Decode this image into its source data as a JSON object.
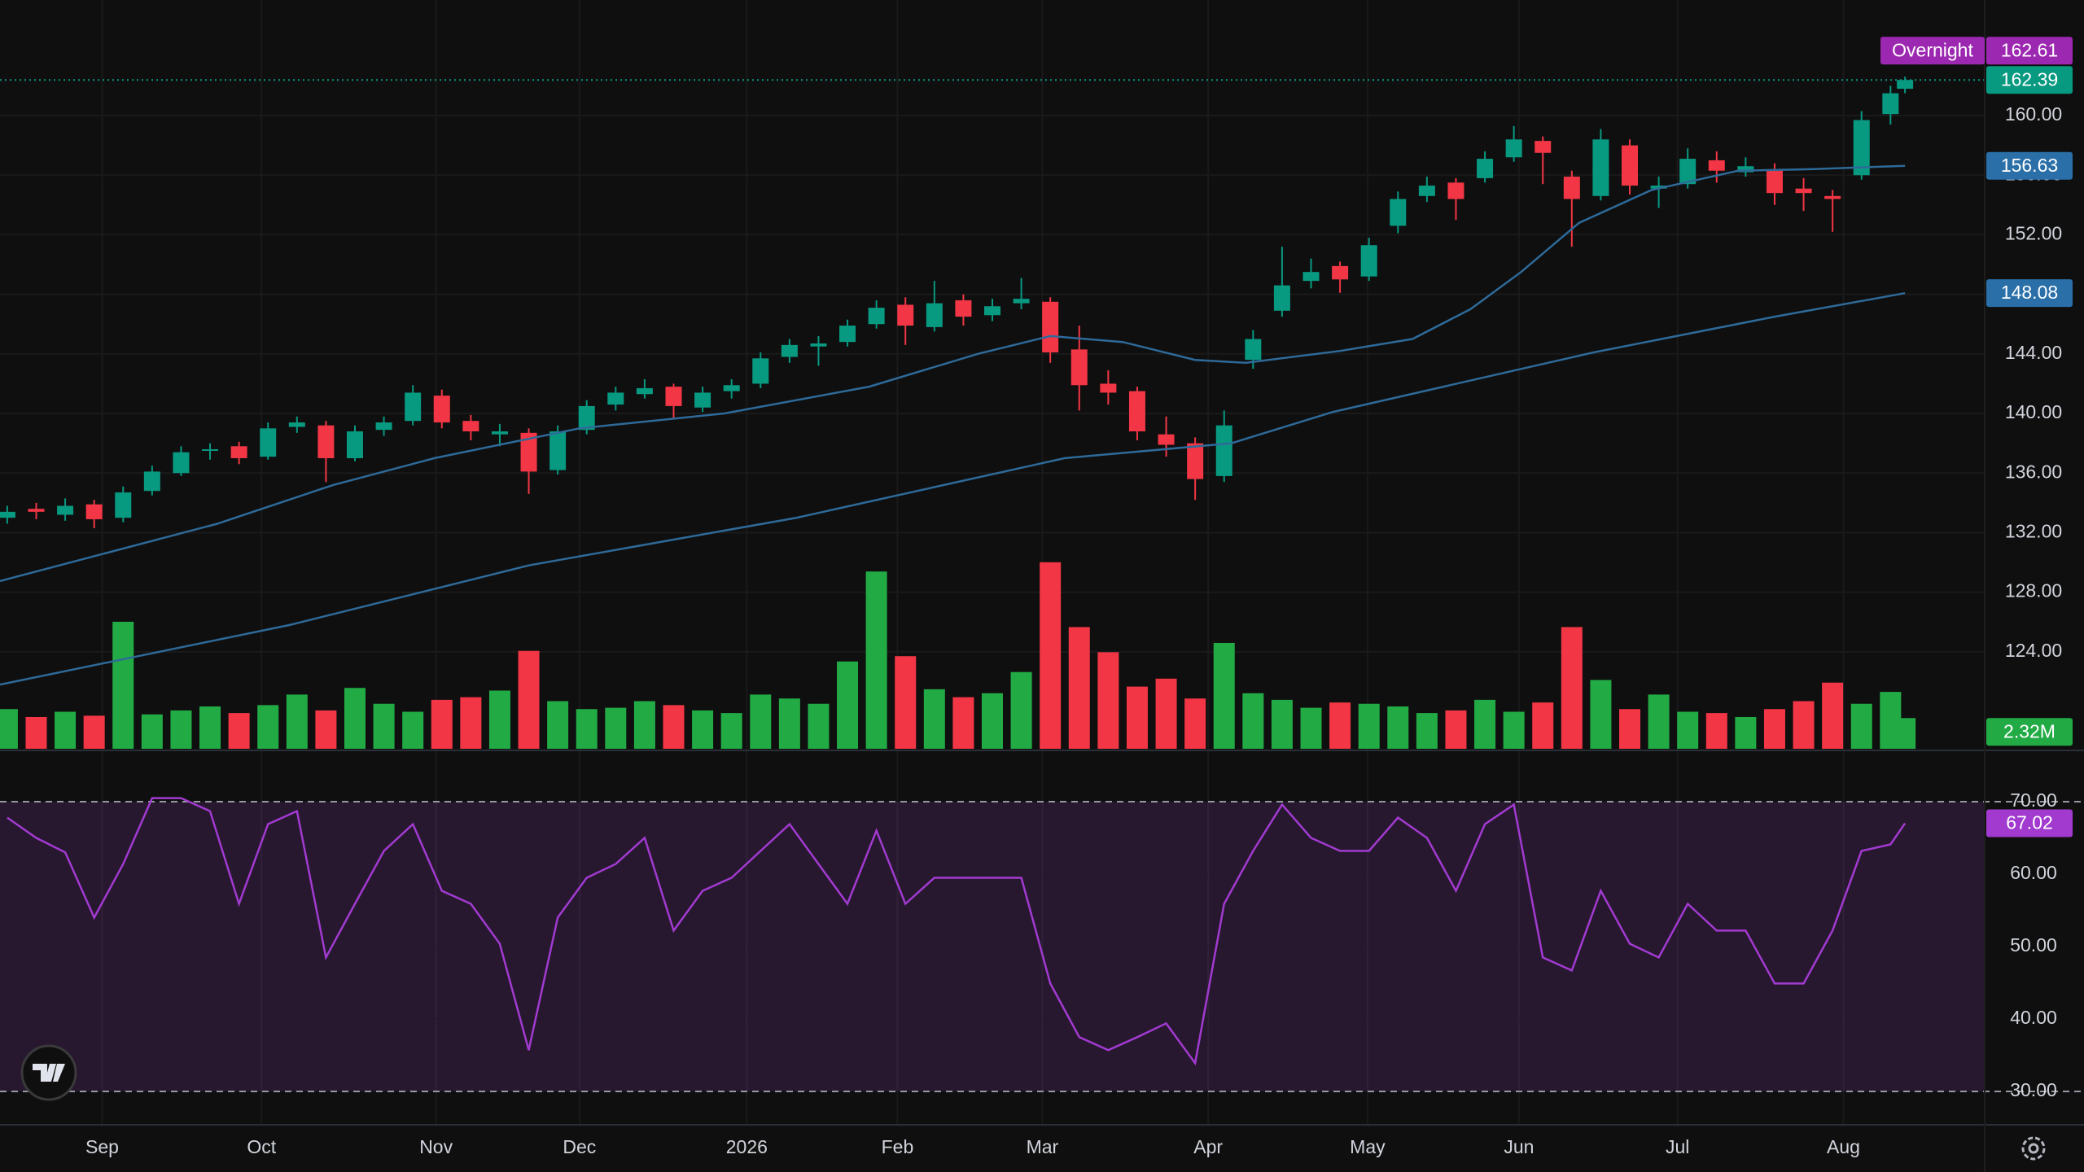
{
  "chart_data": {
    "type": "candlestick",
    "xlim": [
      0,
      274
    ],
    "xticks": [
      {
        "value": 14.1,
        "label": "Sep"
      },
      {
        "value": 36.1,
        "label": "Oct"
      },
      {
        "value": 60.2,
        "label": "Nov"
      },
      {
        "value": 80,
        "label": "Dec"
      },
      {
        "value": 103.1,
        "label": "2026"
      },
      {
        "value": 123.9,
        "label": "Feb"
      },
      {
        "value": 143.9,
        "label": "Mar"
      },
      {
        "value": 166.8,
        "label": "Apr"
      },
      {
        "value": 188.8,
        "label": "May"
      },
      {
        "value": 209.7,
        "label": "Jun"
      },
      {
        "value": 231.6,
        "label": "Jul"
      },
      {
        "value": 254.5,
        "label": "Aug"
      }
    ],
    "ylim": [
      117.49,
      167.76
    ],
    "yticks": [
      {
        "value": 124,
        "label": "124.00"
      },
      {
        "value": 128,
        "label": "128.00"
      },
      {
        "value": 132,
        "label": "132.00"
      },
      {
        "value": 136,
        "label": "136.00"
      },
      {
        "value": 140,
        "label": "140.00"
      },
      {
        "value": 144,
        "label": "144.00"
      },
      {
        "value": 148,
        "label": "148.00"
      },
      {
        "value": 152,
        "label": "152.00"
      },
      {
        "value": 156,
        "label": "156.00"
      },
      {
        "value": 160,
        "label": "160.00"
      }
    ],
    "up_color": "#089981",
    "down_color": "#f23645",
    "x": [
      1,
      5,
      9,
      13,
      17,
      21,
      25,
      29,
      33,
      37,
      41,
      45,
      49,
      53,
      57,
      61,
      65,
      69,
      73,
      77,
      81,
      85,
      89,
      93,
      97,
      101,
      105,
      109,
      113,
      117,
      121,
      125,
      129,
      133,
      137,
      141,
      145,
      149,
      153,
      157,
      161,
      165,
      169,
      173,
      177,
      181,
      185,
      189,
      193,
      197,
      201,
      205,
      209,
      213,
      217,
      221,
      225,
      229,
      233,
      237,
      241,
      245,
      249,
      253,
      257,
      261,
      263
    ],
    "ohlc": [
      [
        133.0,
        133.8,
        132.6,
        133.4
      ],
      [
        133.6,
        134.0,
        132.9,
        133.4
      ],
      [
        133.2,
        134.3,
        132.8,
        133.8
      ],
      [
        133.9,
        134.2,
        132.3,
        132.9
      ],
      [
        133.0,
        135.1,
        132.7,
        134.7
      ],
      [
        134.8,
        136.5,
        134.5,
        136.1
      ],
      [
        136.0,
        137.8,
        135.8,
        137.4
      ],
      [
        137.5,
        138.0,
        136.9,
        137.6
      ],
      [
        137.8,
        138.1,
        136.6,
        137.0
      ],
      [
        137.1,
        139.4,
        136.9,
        139.0
      ],
      [
        139.1,
        139.8,
        138.7,
        139.4
      ],
      [
        139.2,
        139.5,
        135.4,
        137.0
      ],
      [
        137.0,
        139.2,
        136.8,
        138.8
      ],
      [
        138.9,
        139.8,
        138.5,
        139.4
      ],
      [
        139.5,
        141.9,
        139.2,
        141.4
      ],
      [
        141.2,
        141.6,
        139.0,
        139.4
      ],
      [
        139.5,
        139.9,
        138.2,
        138.8
      ],
      [
        138.6,
        139.3,
        137.8,
        138.8
      ],
      [
        138.7,
        139.0,
        134.6,
        136.1
      ],
      [
        136.2,
        139.2,
        135.9,
        138.8
      ],
      [
        138.9,
        140.9,
        138.6,
        140.5
      ],
      [
        140.6,
        141.8,
        140.2,
        141.4
      ],
      [
        141.3,
        142.3,
        141.0,
        141.7
      ],
      [
        141.8,
        142.0,
        139.6,
        140.5
      ],
      [
        140.4,
        141.8,
        140.1,
        141.4
      ],
      [
        141.5,
        142.3,
        141.0,
        141.9
      ],
      [
        142.0,
        144.1,
        141.7,
        143.7
      ],
      [
        143.8,
        145.0,
        143.4,
        144.6
      ],
      [
        144.5,
        145.2,
        143.2,
        144.7
      ],
      [
        144.8,
        146.3,
        144.5,
        145.9
      ],
      [
        146.0,
        147.6,
        145.7,
        147.1
      ],
      [
        147.3,
        147.8,
        144.6,
        145.9
      ],
      [
        145.8,
        148.9,
        145.5,
        147.4
      ],
      [
        147.6,
        148.0,
        145.9,
        146.5
      ],
      [
        146.6,
        147.7,
        146.2,
        147.2
      ],
      [
        147.4,
        149.1,
        147.0,
        147.7
      ],
      [
        147.5,
        147.8,
        143.4,
        144.1
      ],
      [
        144.3,
        145.9,
        140.2,
        141.9
      ],
      [
        142.0,
        142.9,
        140.6,
        141.4
      ],
      [
        141.5,
        141.8,
        138.2,
        138.8
      ],
      [
        138.6,
        139.8,
        137.1,
        137.9
      ],
      [
        138.0,
        138.4,
        134.2,
        135.6
      ],
      [
        135.8,
        140.2,
        135.4,
        139.2
      ],
      [
        143.6,
        145.6,
        143.0,
        145.0
      ],
      [
        146.9,
        151.2,
        146.5,
        148.6
      ],
      [
        148.9,
        150.4,
        148.4,
        149.5
      ],
      [
        149.9,
        150.2,
        148.1,
        149.0
      ],
      [
        149.2,
        151.8,
        148.9,
        151.3
      ],
      [
        152.6,
        154.9,
        152.1,
        154.4
      ],
      [
        154.6,
        155.9,
        154.2,
        155.3
      ],
      [
        155.5,
        155.8,
        153.0,
        154.4
      ],
      [
        155.8,
        157.6,
        155.5,
        157.1
      ],
      [
        157.2,
        159.3,
        156.9,
        158.4
      ],
      [
        158.3,
        158.6,
        155.4,
        157.5
      ],
      [
        155.9,
        156.3,
        151.2,
        154.4
      ],
      [
        154.6,
        159.1,
        154.3,
        158.4
      ],
      [
        158.0,
        158.4,
        154.7,
        155.3
      ],
      [
        155.1,
        155.9,
        153.8,
        155.3
      ],
      [
        155.4,
        157.8,
        155.1,
        157.1
      ],
      [
        157.0,
        157.6,
        155.5,
        156.3
      ],
      [
        156.2,
        157.2,
        155.9,
        156.6
      ],
      [
        156.4,
        156.8,
        154.0,
        154.8
      ],
      [
        155.1,
        155.8,
        153.6,
        154.8
      ],
      [
        154.6,
        155.0,
        152.2,
        154.4
      ],
      [
        156.0,
        160.3,
        155.7,
        159.7
      ],
      [
        160.1,
        162.0,
        159.4,
        161.5
      ],
      [
        161.8,
        162.61,
        161.5,
        162.39
      ]
    ],
    "overnight": {
      "label": "Overnight",
      "value": 162.61,
      "color": "#9c27b0"
    },
    "last_price_color": "#089981",
    "moving_averages": [
      {
        "color": "#2e6a99",
        "x": [
          0,
          30,
          46,
          60,
          80,
          100,
          120,
          135,
          145,
          155,
          165,
          172,
          185,
          195,
          203,
          210,
          218,
          228,
          240,
          250,
          263
        ],
        "values": [
          128.75,
          132.6,
          135.2,
          137.0,
          139.0,
          140.0,
          141.8,
          144.0,
          145.2,
          144.8,
          143.6,
          143.4,
          144.2,
          145.0,
          147.0,
          149.5,
          152.8,
          155.0,
          156.3,
          156.4,
          156.63
        ]
      },
      {
        "color": "#2e6a99",
        "x": [
          0,
          40,
          73,
          110,
          147,
          170,
          184,
          220,
          245,
          263
        ],
        "values": [
          121.8,
          125.8,
          129.8,
          133.0,
          137.0,
          138.0,
          140.1,
          144.1,
          146.5,
          148.08
        ]
      }
    ],
    "volume": {
      "ylim": [
        0,
        56.6
      ],
      "up_color": "#22ab45",
      "down_color": "#f23645",
      "values": [
        3.0,
        2.4,
        2.8,
        2.5,
        9.6,
        2.6,
        2.9,
        3.2,
        2.7,
        3.3,
        4.1,
        2.9,
        4.6,
        3.4,
        2.8,
        3.7,
        3.9,
        4.4,
        7.4,
        3.6,
        3.0,
        3.1,
        3.6,
        3.3,
        2.9,
        2.7,
        4.1,
        3.8,
        3.4,
        6.6,
        13.4,
        7.0,
        4.5,
        3.9,
        4.2,
        5.8,
        14.1,
        9.2,
        7.3,
        4.7,
        5.3,
        3.8,
        8.0,
        4.2,
        3.7,
        3.1,
        3.5,
        3.4,
        3.2,
        2.7,
        2.9,
        3.7,
        2.8,
        3.5,
        9.2,
        5.2,
        3.0,
        4.1,
        2.8,
        2.7,
        2.4,
        3.0,
        3.6,
        5.0,
        3.4,
        4.3,
        2.32
      ],
      "value_labels": {
        "66": "2.32M"
      }
    },
    "rsi": {
      "ylim": [
        25.62,
        76.97
      ],
      "color": "#a23ad0",
      "yticks": [
        {
          "value": 30,
          "label": "30.00"
        },
        {
          "value": 40,
          "label": "40.00"
        },
        {
          "value": 50,
          "label": "50.00"
        },
        {
          "value": 60,
          "label": "60.00"
        },
        {
          "value": 70,
          "label": "70.00"
        }
      ],
      "values": [
        67.8,
        65,
        63,
        54,
        61.4,
        70.5,
        70.5,
        68.7,
        55.9,
        66.9,
        68.7,
        48.5,
        55.9,
        63.2,
        66.9,
        57.7,
        55.9,
        50.4,
        35.7,
        54,
        59.5,
        61.4,
        65,
        52.2,
        57.7,
        59.5,
        63.2,
        66.9,
        61.4,
        55.9,
        66,
        55.9,
        59.5,
        59.5,
        59.5,
        59.5,
        44.9,
        37.5,
        35.7,
        37.5,
        39.4,
        33.9,
        55.9,
        63.2,
        69.6,
        65,
        63.2,
        63.2,
        67.8,
        65,
        57.7,
        66.9,
        69.6,
        48.5,
        46.7,
        57.7,
        50.4,
        48.5,
        55.9,
        52.2,
        52.2,
        44.9,
        44.9,
        52.2,
        63.2,
        64.1,
        67.02
      ]
    }
  }
}
